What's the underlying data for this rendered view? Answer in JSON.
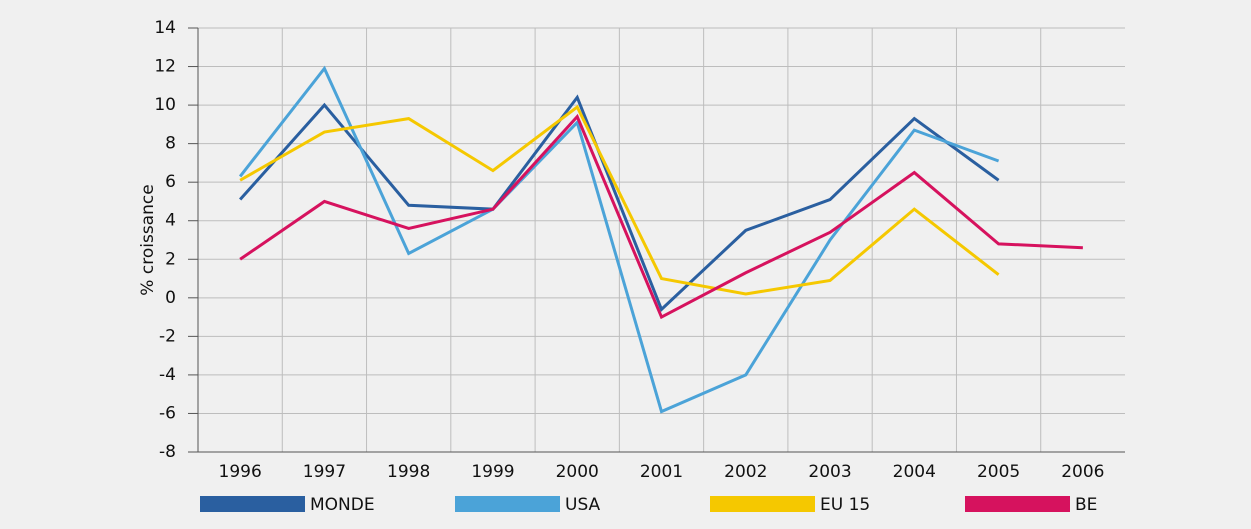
{
  "chart_data": {
    "type": "line",
    "categories": [
      "1996",
      "1997",
      "1998",
      "1999",
      "2000",
      "2001",
      "2002",
      "2003",
      "2004",
      "2005",
      "2006"
    ],
    "y_label": "% croissance",
    "series": [
      {
        "name": "MONDE",
        "color": "#2a5fa0",
        "values": [
          5.1,
          10,
          4.8,
          4.6,
          10.4,
          -0.6,
          3.5,
          5.1,
          9.3,
          6.1,
          null
        ]
      },
      {
        "name": "USA",
        "color": "#4ba3d8",
        "values": [
          6.3,
          11.9,
          2.3,
          4.6,
          9.1,
          -5.9,
          -4.0,
          3.0,
          8.7,
          7.1,
          null
        ]
      },
      {
        "name": "EU 15",
        "color": "#f5c800",
        "values": [
          6.1,
          8.6,
          9.3,
          6.6,
          9.9,
          1.0,
          0.2,
          0.9,
          4.6,
          1.2,
          null
        ]
      },
      {
        "name": "BE",
        "color": "#d6125e",
        "values": [
          2.0,
          5.0,
          3.6,
          4.6,
          9.4,
          -1.0,
          1.3,
          3.4,
          6.5,
          2.8,
          2.6
        ]
      }
    ],
    "ylim": [
      -8,
      14
    ],
    "yticks": [
      -8,
      -6,
      -4,
      -2,
      0,
      2,
      4,
      6,
      8,
      10,
      12,
      14
    ],
    "grid": true
  }
}
